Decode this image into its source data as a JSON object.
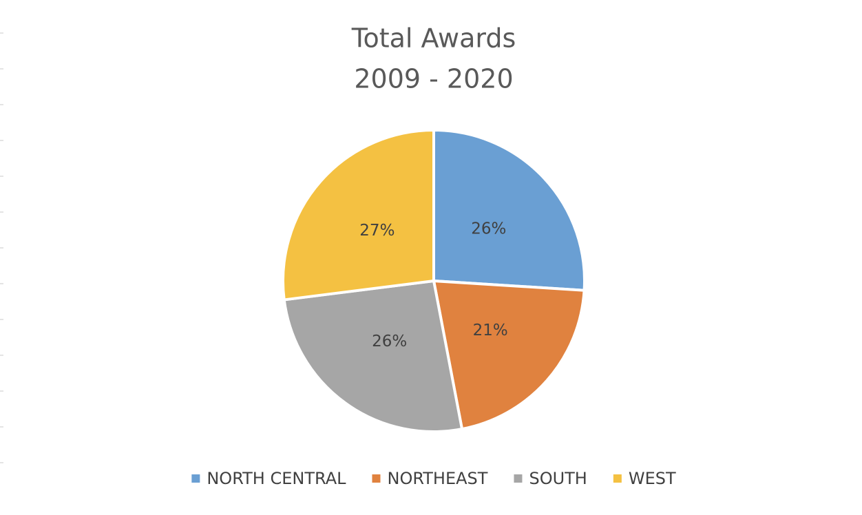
{
  "chart_data": {
    "type": "pie",
    "title": [
      "Total Awards",
      "2009 - 2020"
    ],
    "categories": [
      "NORTH CENTRAL",
      "NORTHEAST",
      "SOUTH",
      "WEST"
    ],
    "values": [
      26,
      21,
      26,
      27
    ],
    "value_labels": [
      "26%",
      "21%",
      "26%",
      "27%"
    ],
    "colors": [
      "#6a9fd3",
      "#e0823f",
      "#a6a6a6",
      "#f4c142"
    ],
    "legend": "bottom"
  }
}
